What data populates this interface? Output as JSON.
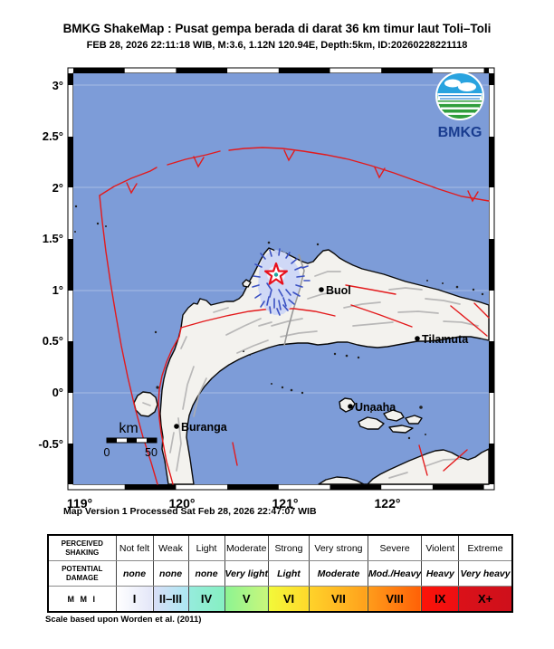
{
  "header": {
    "title": "BMKG ShakeMap : Pusat gempa berada di darat 36 km timur laut Toli–Toli",
    "subtitle": "FEB 28, 2026 22:11:18 WIB, M:3.6, 1.12N 120.94E, Depth:5km, ID:20260228221118"
  },
  "map": {
    "version_note": "Map Version 1 Processed Sat Feb 28, 2026 22:47:07 WIB",
    "logo_text": "BMKG",
    "x_ticks": [
      "119°",
      "120°",
      "121°",
      "122°"
    ],
    "y_ticks": [
      "3°",
      "2.5°",
      "2°",
      "1.5°",
      "1°",
      "0.5°",
      "0°",
      "-0.5°"
    ],
    "cities": [
      {
        "name": "Buol"
      },
      {
        "name": "Tilamuta"
      },
      {
        "name": "Unaaha"
      },
      {
        "name": "Buranga"
      }
    ],
    "scale_bar": {
      "unit": "km",
      "start": "0",
      "end": "50"
    },
    "colors": {
      "ocean": "#7d9cd8",
      "land": "#f3f2ee",
      "coast": "#0a0a0a",
      "fault": "#e31a1c",
      "intensity_fill": "#ccd6f5",
      "intensity_hatch": "#3a50c2",
      "epicenter_star": "#e8101c",
      "epicenter_core": "#1fa8a0"
    }
  },
  "legend": {
    "row_labels": {
      "shaking_line1": "PERCEIVED",
      "shaking_line2": "SHAKING",
      "damage_line1": "POTENTIAL",
      "damage_line2": "DAMAGE",
      "mmi": "M M I"
    },
    "columns": [
      {
        "shaking": "Not felt",
        "damage": "none",
        "mmi": "I",
        "from": "#ffffff",
        "to": "#e3e6f8"
      },
      {
        "shaking": "Weak",
        "damage": "none",
        "mmi": "II–III",
        "from": "#d9def7",
        "to": "#abe7f2"
      },
      {
        "shaking": "Light",
        "damage": "none",
        "mmi": "IV",
        "from": "#96ebdd",
        "to": "#86f0c2"
      },
      {
        "shaking": "Moderate",
        "damage": "Very light",
        "mmi": "V",
        "from": "#8cf393",
        "to": "#c9f77b"
      },
      {
        "shaking": "Strong",
        "damage": "Light",
        "mmi": "VI",
        "from": "#f2f93a",
        "to": "#ffd92b"
      },
      {
        "shaking": "Very strong",
        "damage": "Moderate",
        "mmi": "VII",
        "from": "#ffd32a",
        "to": "#ffa01c"
      },
      {
        "shaking": "Severe",
        "damage": "Mod./Heavy",
        "mmi": "VIII",
        "from": "#ff9c1b",
        "to": "#ff6107"
      },
      {
        "shaking": "Violent",
        "damage": "Heavy",
        "mmi": "IX",
        "from": "#fb1408",
        "to": "#ee0f13"
      },
      {
        "shaking": "Extreme",
        "damage": "Very heavy",
        "mmi": "X+",
        "from": "#db1119",
        "to": "#ce101b"
      }
    ],
    "footnote": "Scale based upon Worden et al. (2011)"
  }
}
